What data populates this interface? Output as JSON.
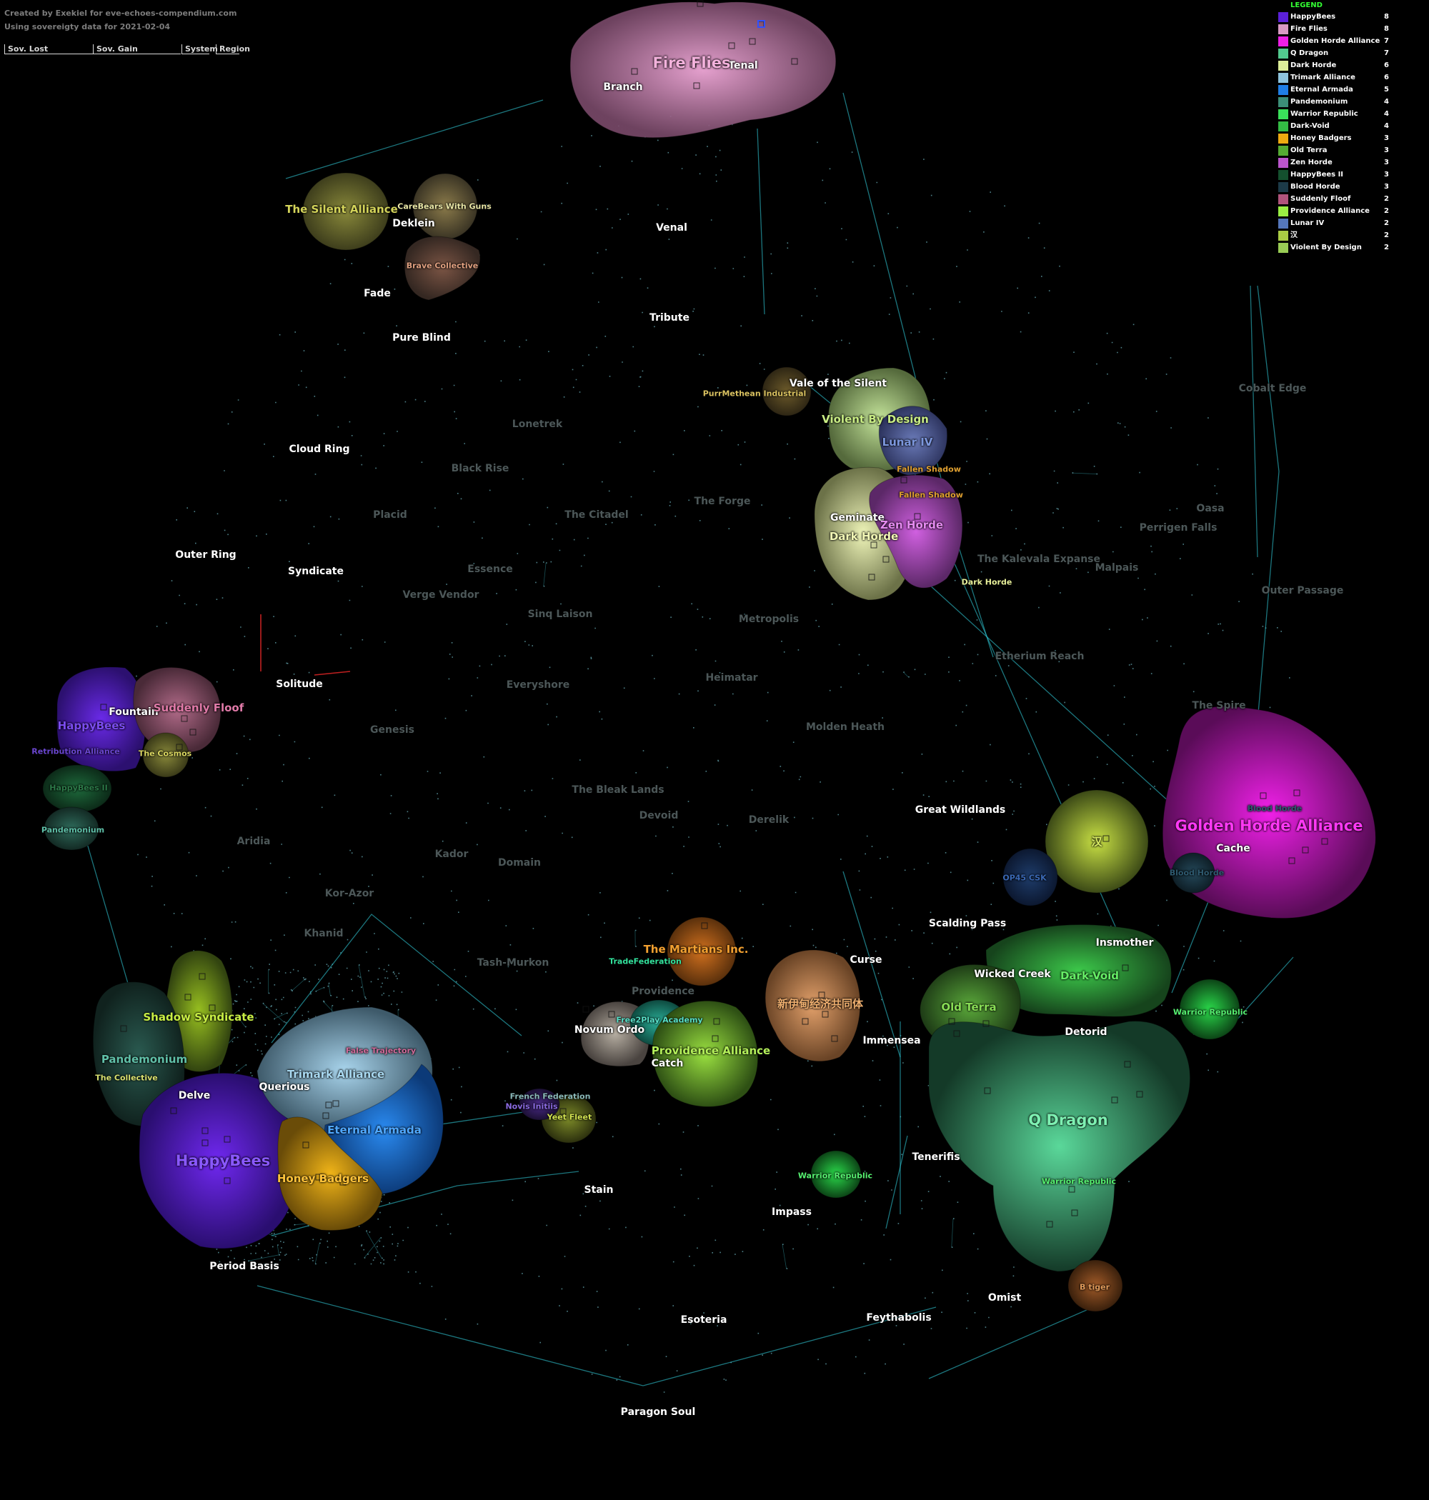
{
  "credits": {
    "created_by": "Created by Exekiel for eve-echoes-compendium.com",
    "data_note": "Using sovereigty data for 2021-02-04"
  },
  "header": {
    "sov_lost": "Sov. Lost",
    "sov_gain": "Sov. Gain",
    "system": "System",
    "region": "Region"
  },
  "legend": {
    "title": "LEGEND",
    "items": [
      {
        "name": "HappyBees",
        "count": "8",
        "color": "#5b20d8"
      },
      {
        "name": "Fire Flies",
        "count": "8",
        "color": "#d99ac4"
      },
      {
        "name": "Golden Horde Alliance",
        "count": "7",
        "color": "#ee1ee6"
      },
      {
        "name": "Q Dragon",
        "count": "7",
        "color": "#52c98e"
      },
      {
        "name": "Dark Horde",
        "count": "6",
        "color": "#ddee99"
      },
      {
        "name": "Trimark Alliance",
        "count": "6",
        "color": "#8ec4dd"
      },
      {
        "name": "Eternal Armada",
        "count": "5",
        "color": "#1f7ee6"
      },
      {
        "name": "Pandemonium",
        "count": "4",
        "color": "#3c8e78"
      },
      {
        "name": "Warrior Republic",
        "count": "4",
        "color": "#3ae05a"
      },
      {
        "name": "Dark-Void",
        "count": "4",
        "color": "#33bb44"
      },
      {
        "name": "Honey Badgers",
        "count": "3",
        "color": "#eeaa11"
      },
      {
        "name": "Old Terra",
        "count": "3",
        "color": "#55aa33"
      },
      {
        "name": "Zen Horde",
        "count": "3",
        "color": "#bb55cc"
      },
      {
        "name": "HappyBees II",
        "count": "3",
        "color": "#14502e"
      },
      {
        "name": "Blood Horde",
        "count": "3",
        "color": "#1c3a48"
      },
      {
        "name": "Suddenly Floof",
        "count": "2",
        "color": "#b0547c"
      },
      {
        "name": "Providence Alliance",
        "count": "2",
        "color": "#99ee44"
      },
      {
        "name": "Lunar IV",
        "count": "2",
        "color": "#5577bb"
      },
      {
        "name": "汉",
        "count": "2",
        "color": "#aacc44"
      },
      {
        "name": "Violent By Design",
        "count": "2",
        "color": "#99cc55"
      }
    ]
  },
  "regions": [
    {
      "name": "Tenal",
      "dim": false
    },
    {
      "name": "Branch",
      "dim": false
    },
    {
      "name": "Venal",
      "dim": false
    },
    {
      "name": "Deklein",
      "dim": false
    },
    {
      "name": "Fade",
      "dim": false
    },
    {
      "name": "Pure Blind",
      "dim": false
    },
    {
      "name": "Tribute",
      "dim": false
    },
    {
      "name": "Vale of the Silent",
      "dim": false
    },
    {
      "name": "Cloud Ring",
      "dim": false
    },
    {
      "name": "Outer Ring",
      "dim": false
    },
    {
      "name": "Syndicate",
      "dim": false
    },
    {
      "name": "Solitude",
      "dim": false
    },
    {
      "name": "Fountain",
      "dim": false
    },
    {
      "name": "Geminate",
      "dim": false
    },
    {
      "name": "Great Wildlands",
      "dim": false
    },
    {
      "name": "Cache",
      "dim": false
    },
    {
      "name": "Scalding Pass",
      "dim": false
    },
    {
      "name": "Insmother",
      "dim": false
    },
    {
      "name": "Wicked Creek",
      "dim": false
    },
    {
      "name": "Detorid",
      "dim": false
    },
    {
      "name": "Curse",
      "dim": false
    },
    {
      "name": "Immensea",
      "dim": false
    },
    {
      "name": "Tenerifis",
      "dim": false
    },
    {
      "name": "Impass",
      "dim": false
    },
    {
      "name": "Stain",
      "dim": false
    },
    {
      "name": "Omist",
      "dim": false
    },
    {
      "name": "Feythabolis",
      "dim": false
    },
    {
      "name": "Esoteria",
      "dim": false
    },
    {
      "name": "Paragon Soul",
      "dim": false
    },
    {
      "name": "Period Basis",
      "dim": false
    },
    {
      "name": "Delve",
      "dim": false
    },
    {
      "name": "Querious",
      "dim": false
    },
    {
      "name": "Catch",
      "dim": false
    },
    {
      "name": "Novum Ordo",
      "dim": false
    },
    {
      "name": "Providence",
      "dim": true
    },
    {
      "name": "Cobalt Edge",
      "dim": true
    },
    {
      "name": "Lonetrek",
      "dim": true
    },
    {
      "name": "Black Rise",
      "dim": true
    },
    {
      "name": "The Forge",
      "dim": true
    },
    {
      "name": "The Citadel",
      "dim": true
    },
    {
      "name": "Placid",
      "dim": true
    },
    {
      "name": "Essence",
      "dim": true
    },
    {
      "name": "Verge Vendor",
      "dim": true
    },
    {
      "name": "Sinq Laison",
      "dim": true
    },
    {
      "name": "Metropolis",
      "dim": true
    },
    {
      "name": "Heimatar",
      "dim": true
    },
    {
      "name": "Everyshore",
      "dim": true
    },
    {
      "name": "Genesis",
      "dim": true
    },
    {
      "name": "Molden Heath",
      "dim": true
    },
    {
      "name": "The Bleak Lands",
      "dim": true
    },
    {
      "name": "Devoid",
      "dim": true
    },
    {
      "name": "Derelik",
      "dim": true
    },
    {
      "name": "Aridia",
      "dim": true
    },
    {
      "name": "Kador",
      "dim": true
    },
    {
      "name": "Domain",
      "dim": true
    },
    {
      "name": "Kor-Azor",
      "dim": true
    },
    {
      "name": "Khanid",
      "dim": true
    },
    {
      "name": "Tash-Murkon",
      "dim": true
    },
    {
      "name": "The Kalevala Expanse",
      "dim": true
    },
    {
      "name": "Malpais",
      "dim": true
    },
    {
      "name": "Oasa",
      "dim": true
    },
    {
      "name": "Perrigen Falls",
      "dim": true
    },
    {
      "name": "Outer Passage",
      "dim": true
    },
    {
      "name": "Etherium Reach",
      "dim": true
    },
    {
      "name": "The Spire",
      "dim": true
    }
  ],
  "alliances": [
    {
      "name": "Fire Flies",
      "color": "#f3b2dc",
      "size": "big"
    },
    {
      "name": "The Silent Alliance",
      "color": "#d4d45a",
      "size": "normal"
    },
    {
      "name": "CareBears With Guns",
      "color": "#e9e6a6",
      "size": "small"
    },
    {
      "name": "Brave Collective",
      "color": "#e0a080",
      "size": "small"
    },
    {
      "name": "PurrMethean Industrial",
      "color": "#d9c160",
      "size": "small"
    },
    {
      "name": "Violent By Design",
      "color": "#c8ec84",
      "size": "normal"
    },
    {
      "name": "Lunar IV",
      "color": "#7c97dd",
      "size": "normal"
    },
    {
      "name": "Fallen Shadow",
      "color": "#e0a030",
      "size": "small"
    },
    {
      "name": "Fallen Shadow",
      "color": "#e0a030",
      "size": "small"
    },
    {
      "name": "Zen Horde",
      "color": "#e58bf0",
      "size": "normal"
    },
    {
      "name": "Dark Horde",
      "color": "#f2f7b6",
      "size": "normal"
    },
    {
      "name": "Dark Horde",
      "color": "#e8f09a",
      "size": "small"
    },
    {
      "name": "Suddenly Floof",
      "color": "#e07aa8",
      "size": "normal"
    },
    {
      "name": "HappyBees",
      "color": "#7b4cf0",
      "size": "normal"
    },
    {
      "name": "Retribution Alliance",
      "color": "#6a46d0",
      "size": "small"
    },
    {
      "name": "The Cosmos",
      "color": "#d9d660",
      "size": "small"
    },
    {
      "name": "HappyBees II",
      "color": "#2c7a48",
      "size": "small"
    },
    {
      "name": "Pandemonium",
      "color": "#5fc0a8",
      "size": "small"
    },
    {
      "name": "Golden Horde Alliance",
      "color": "#ff38f5",
      "size": "big"
    },
    {
      "name": "Blood Horde",
      "color": "#2e5a70",
      "size": "small"
    },
    {
      "name": "Blood Horde",
      "color": "#2e5a70",
      "size": "small"
    },
    {
      "name": "汉",
      "color": "#dcef66",
      "size": "normal"
    },
    {
      "name": "OP45 CSK",
      "color": "#3a68b4",
      "size": "small"
    },
    {
      "name": "The Martians Inc.",
      "color": "#f2a030",
      "size": "normal"
    },
    {
      "name": "TradeFederation",
      "color": "#32e29c",
      "size": "small"
    },
    {
      "name": "新伊甸经济共同体",
      "color": "#f0b070",
      "size": "normal"
    },
    {
      "name": "Dark-Void",
      "color": "#66ee66",
      "size": "normal"
    },
    {
      "name": "Old Terra",
      "color": "#88dd55",
      "size": "normal"
    },
    {
      "name": "Warrior Republic",
      "color": "#56f070",
      "size": "small"
    },
    {
      "name": "Warrior Republic",
      "color": "#56f070",
      "size": "small"
    },
    {
      "name": "Warrior Republic",
      "color": "#56f070",
      "size": "small"
    },
    {
      "name": "Q Dragon",
      "color": "#7ef0b2",
      "size": "big"
    },
    {
      "name": "B tiger",
      "color": "#e09a5a",
      "size": "small"
    },
    {
      "name": "Shadow Syndicate",
      "color": "#c8ee44",
      "size": "normal"
    },
    {
      "name": "Pandemonium",
      "color": "#60c0a8",
      "size": "normal"
    },
    {
      "name": "The Collective",
      "color": "#d8e070",
      "size": "small"
    },
    {
      "name": "HappyBees",
      "color": "#8a58ff",
      "size": "big"
    },
    {
      "name": "Trimark Alliance",
      "color": "#a8d8f0",
      "size": "normal"
    },
    {
      "name": "False Trajectory",
      "color": "#d06a9a",
      "size": "small"
    },
    {
      "name": "Eternal Armada",
      "color": "#50a8ff",
      "size": "normal"
    },
    {
      "name": "Honey Badgers",
      "color": "#ffc33a",
      "size": "normal"
    },
    {
      "name": "French Federation",
      "color": "#8ab8b8",
      "size": "small"
    },
    {
      "name": "Novis Initiis",
      "color": "#8a6ae0",
      "size": "small"
    },
    {
      "name": "Yeet Fleet",
      "color": "#d0e050",
      "size": "small"
    },
    {
      "name": "Free2Play Academy",
      "color": "#58e0c8",
      "size": "small"
    },
    {
      "name": "Providence Alliance",
      "color": "#b4f05a",
      "size": "normal"
    }
  ]
}
